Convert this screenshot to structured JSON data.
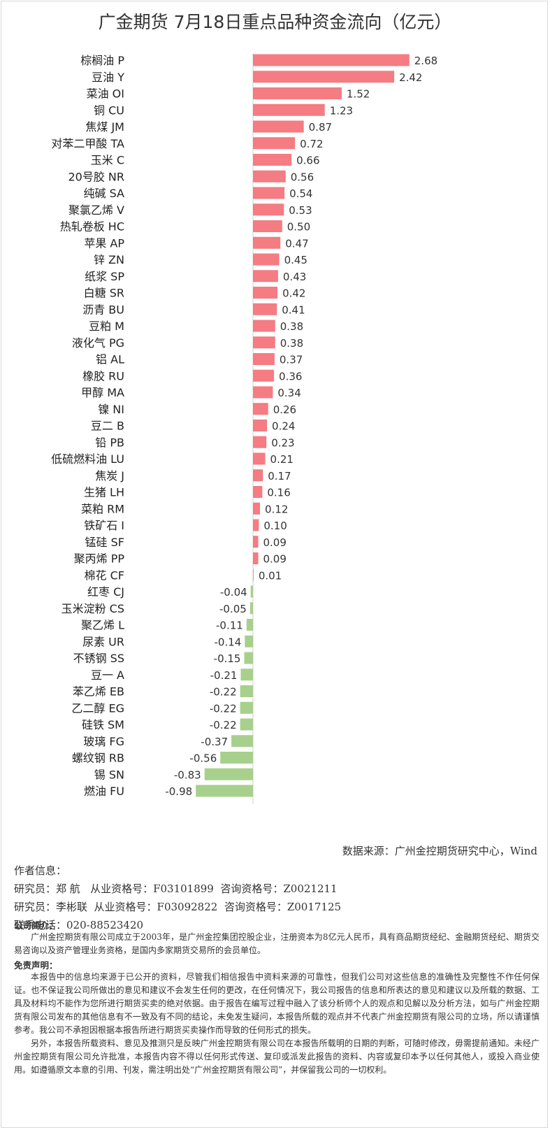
{
  "title": "广金期货 7月18日重点品种资金流向（亿元）",
  "chart_data": {
    "type": "bar",
    "orientation": "horizontal",
    "title": "广金期货 7月18日重点品种资金流向（亿元）",
    "unit": "亿元",
    "positive_color": "#f47c82",
    "negative_color": "#a8d08d",
    "categories": [
      "棕榈油 P",
      "豆油 Y",
      "菜油 OI",
      "铜 CU",
      "焦煤 JM",
      "对苯二甲酸 TA",
      "玉米 C",
      "20号胶 NR",
      "纯碱 SA",
      "聚氯乙烯 V",
      "热轧卷板 HC",
      "苹果 AP",
      "锌 ZN",
      "纸浆 SP",
      "白糖 SR",
      "沥青 BU",
      "豆粕 M",
      "液化气 PG",
      "铝 AL",
      "橡胶 RU",
      "甲醇 MA",
      "镍 NI",
      "豆二 B",
      "铅 PB",
      "低硫燃料油 LU",
      "焦炭 J",
      "生猪 LH",
      "菜粕 RM",
      "铁矿石 I",
      "锰硅 SF",
      "聚丙烯 PP",
      "棉花 CF",
      "红枣 CJ",
      "玉米淀粉 CS",
      "聚乙烯 L",
      "尿素 UR",
      "不锈钢 SS",
      "豆一 A",
      "苯乙烯 EB",
      "乙二醇 EG",
      "硅铁 SM",
      "玻璃 FG",
      "螺纹钢 RB",
      "锡 SN",
      "燃油 FU"
    ],
    "values": [
      2.68,
      2.42,
      1.52,
      1.23,
      0.87,
      0.72,
      0.66,
      0.56,
      0.54,
      0.53,
      0.5,
      0.47,
      0.45,
      0.43,
      0.42,
      0.41,
      0.38,
      0.38,
      0.37,
      0.36,
      0.34,
      0.26,
      0.24,
      0.23,
      0.21,
      0.17,
      0.16,
      0.12,
      0.1,
      0.09,
      0.09,
      0.01,
      -0.04,
      -0.05,
      -0.11,
      -0.14,
      -0.15,
      -0.21,
      -0.22,
      -0.22,
      -0.22,
      -0.37,
      -0.56,
      -0.83,
      -0.98
    ],
    "value_labels": [
      "2.68",
      "2.42",
      "1.52",
      "1.23",
      "0.87",
      "0.72",
      "0.66",
      "0.56",
      "0.54",
      "0.53",
      "0.50",
      "0.47",
      "0.45",
      "0.43",
      "0.42",
      "0.41",
      "0.38",
      "0.38",
      "0.37",
      "0.36",
      "0.34",
      "0.26",
      "0.24",
      "0.23",
      "0.21",
      "0.17",
      "0.16",
      "0.12",
      "0.10",
      "0.09",
      "0.09",
      "0.01",
      "-0.04",
      "-0.05",
      "-0.11",
      "-0.14",
      "-0.15",
      "-0.21",
      "-0.22",
      "-0.22",
      "-0.22",
      "-0.37",
      "-0.56",
      "-0.83",
      "-0.98"
    ]
  },
  "source": "数据来源：广州金控期货研究中心，Wind",
  "author": {
    "heading": "作者信息：",
    "rows": [
      "研究员：郑 航   从业资格号：F03101899  咨询资格号：Z0021211",
      "研究员：李彬联  从业资格号：F03092822  咨询资格号：Z0017125",
      "联系电话：020-88523420"
    ]
  },
  "company": {
    "heading": "公司简介：",
    "text": "广州金控期货有限公司成立于2003年，是广州金控集团控股企业，注册资本为8亿元人民币，具有商品期货经纪、金融期货经纪、期货交易咨询以及资产管理业务资格，是国内多家期货交易所的会员单位。"
  },
  "disclaimer": {
    "heading": "免责声明：",
    "p1": "本报告中的信息均来源于已公开的资料，尽管我们相信报告中资料来源的可靠性，但我们公司对这些信息的准确性及完整性不作任何保证。也不保证我公司所做出的意见和建议不会发生任何的更改，在任何情况下，我公司报告的信息和所表达的意见和建议以及所载的数据、工具及材料均不能作为您所进行期货买卖的绝对依据。由于报告在编写过程中融入了该分析师个人的观点和见解以及分析方法，如与广州金控期货有限公司发布的其他信息有不一致及有不同的结论，未免发生疑问，本报告所载的观点并不代表广州金控期货有限公司的立场，所以请谨慎参考。我公司不承担因根据本报告所进行期货买卖操作而导致的任何形式的损失。",
    "p2": "另外，本报告所载资料、意见及推测只是反映广州金控期货有限公司在本报告所载明的日期的判断，可随时修改，毋需提前通知。未经广州金控期货有限公司允许批准，本报告内容不得以任何形式传送、复印或派发此报告的资料、内容或复印本予以任何其他人，或投入商业使用。如遵循原文本意的引用、刊发，需注明出处“广州金控期货有限公司”，并保留我公司的一切权利。"
  }
}
